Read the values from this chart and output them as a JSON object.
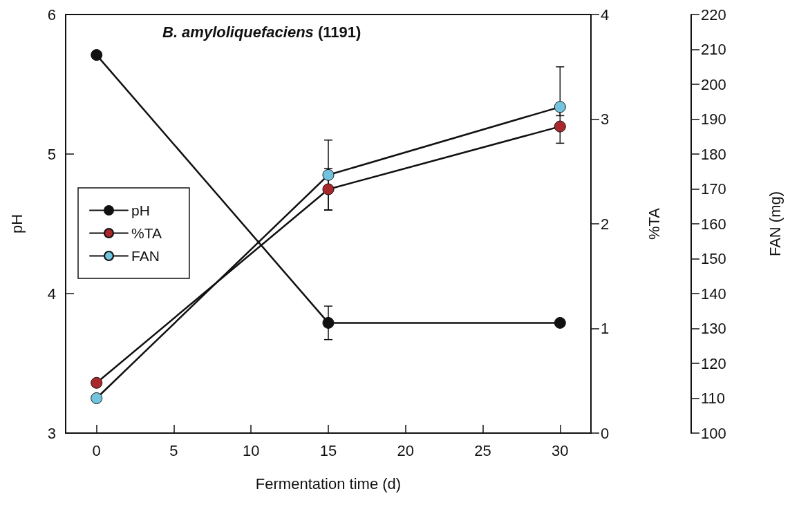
{
  "chart_data": {
    "type": "line",
    "title": "B. amyloliquefaciens (1191)",
    "xlabel": "Fermentation time (d)",
    "ylabel": "pH",
    "y2label": "%TA",
    "y3label": "FAN (mg)",
    "x": [
      0,
      15,
      30
    ],
    "series": [
      {
        "name": "pH",
        "color": "#111111",
        "values": [
          5.71,
          3.79,
          3.79
        ],
        "errors": [
          null,
          0.12,
          null
        ]
      },
      {
        "name": "%TA",
        "color": "#a8282c",
        "axis": "y2",
        "values": [
          0.48,
          2.33,
          2.93
        ],
        "errors": [
          null,
          0.2,
          0.16
        ]
      },
      {
        "name": "FAN",
        "color": "#72c4de",
        "axis": "y3",
        "values": [
          110,
          174,
          193.5
        ],
        "errors": [
          null,
          10,
          [
            191,
            205
          ]
        ]
      }
    ],
    "xlim": [
      -2,
      32
    ],
    "xticks": [
      0,
      5,
      10,
      15,
      20,
      25,
      30
    ],
    "ylim": [
      3,
      6
    ],
    "yticks": [
      3,
      4,
      5,
      6
    ],
    "y2lim": [
      0,
      4
    ],
    "y2ticks": [
      0,
      1,
      2,
      3,
      4
    ],
    "y3lim": [
      100,
      220
    ],
    "y3ticks": [
      100,
      110,
      120,
      130,
      140,
      150,
      160,
      170,
      180,
      190,
      200,
      210,
      220
    ],
    "legend": "left",
    "marker": "circle",
    "line_style": "solid",
    "grid": false
  }
}
